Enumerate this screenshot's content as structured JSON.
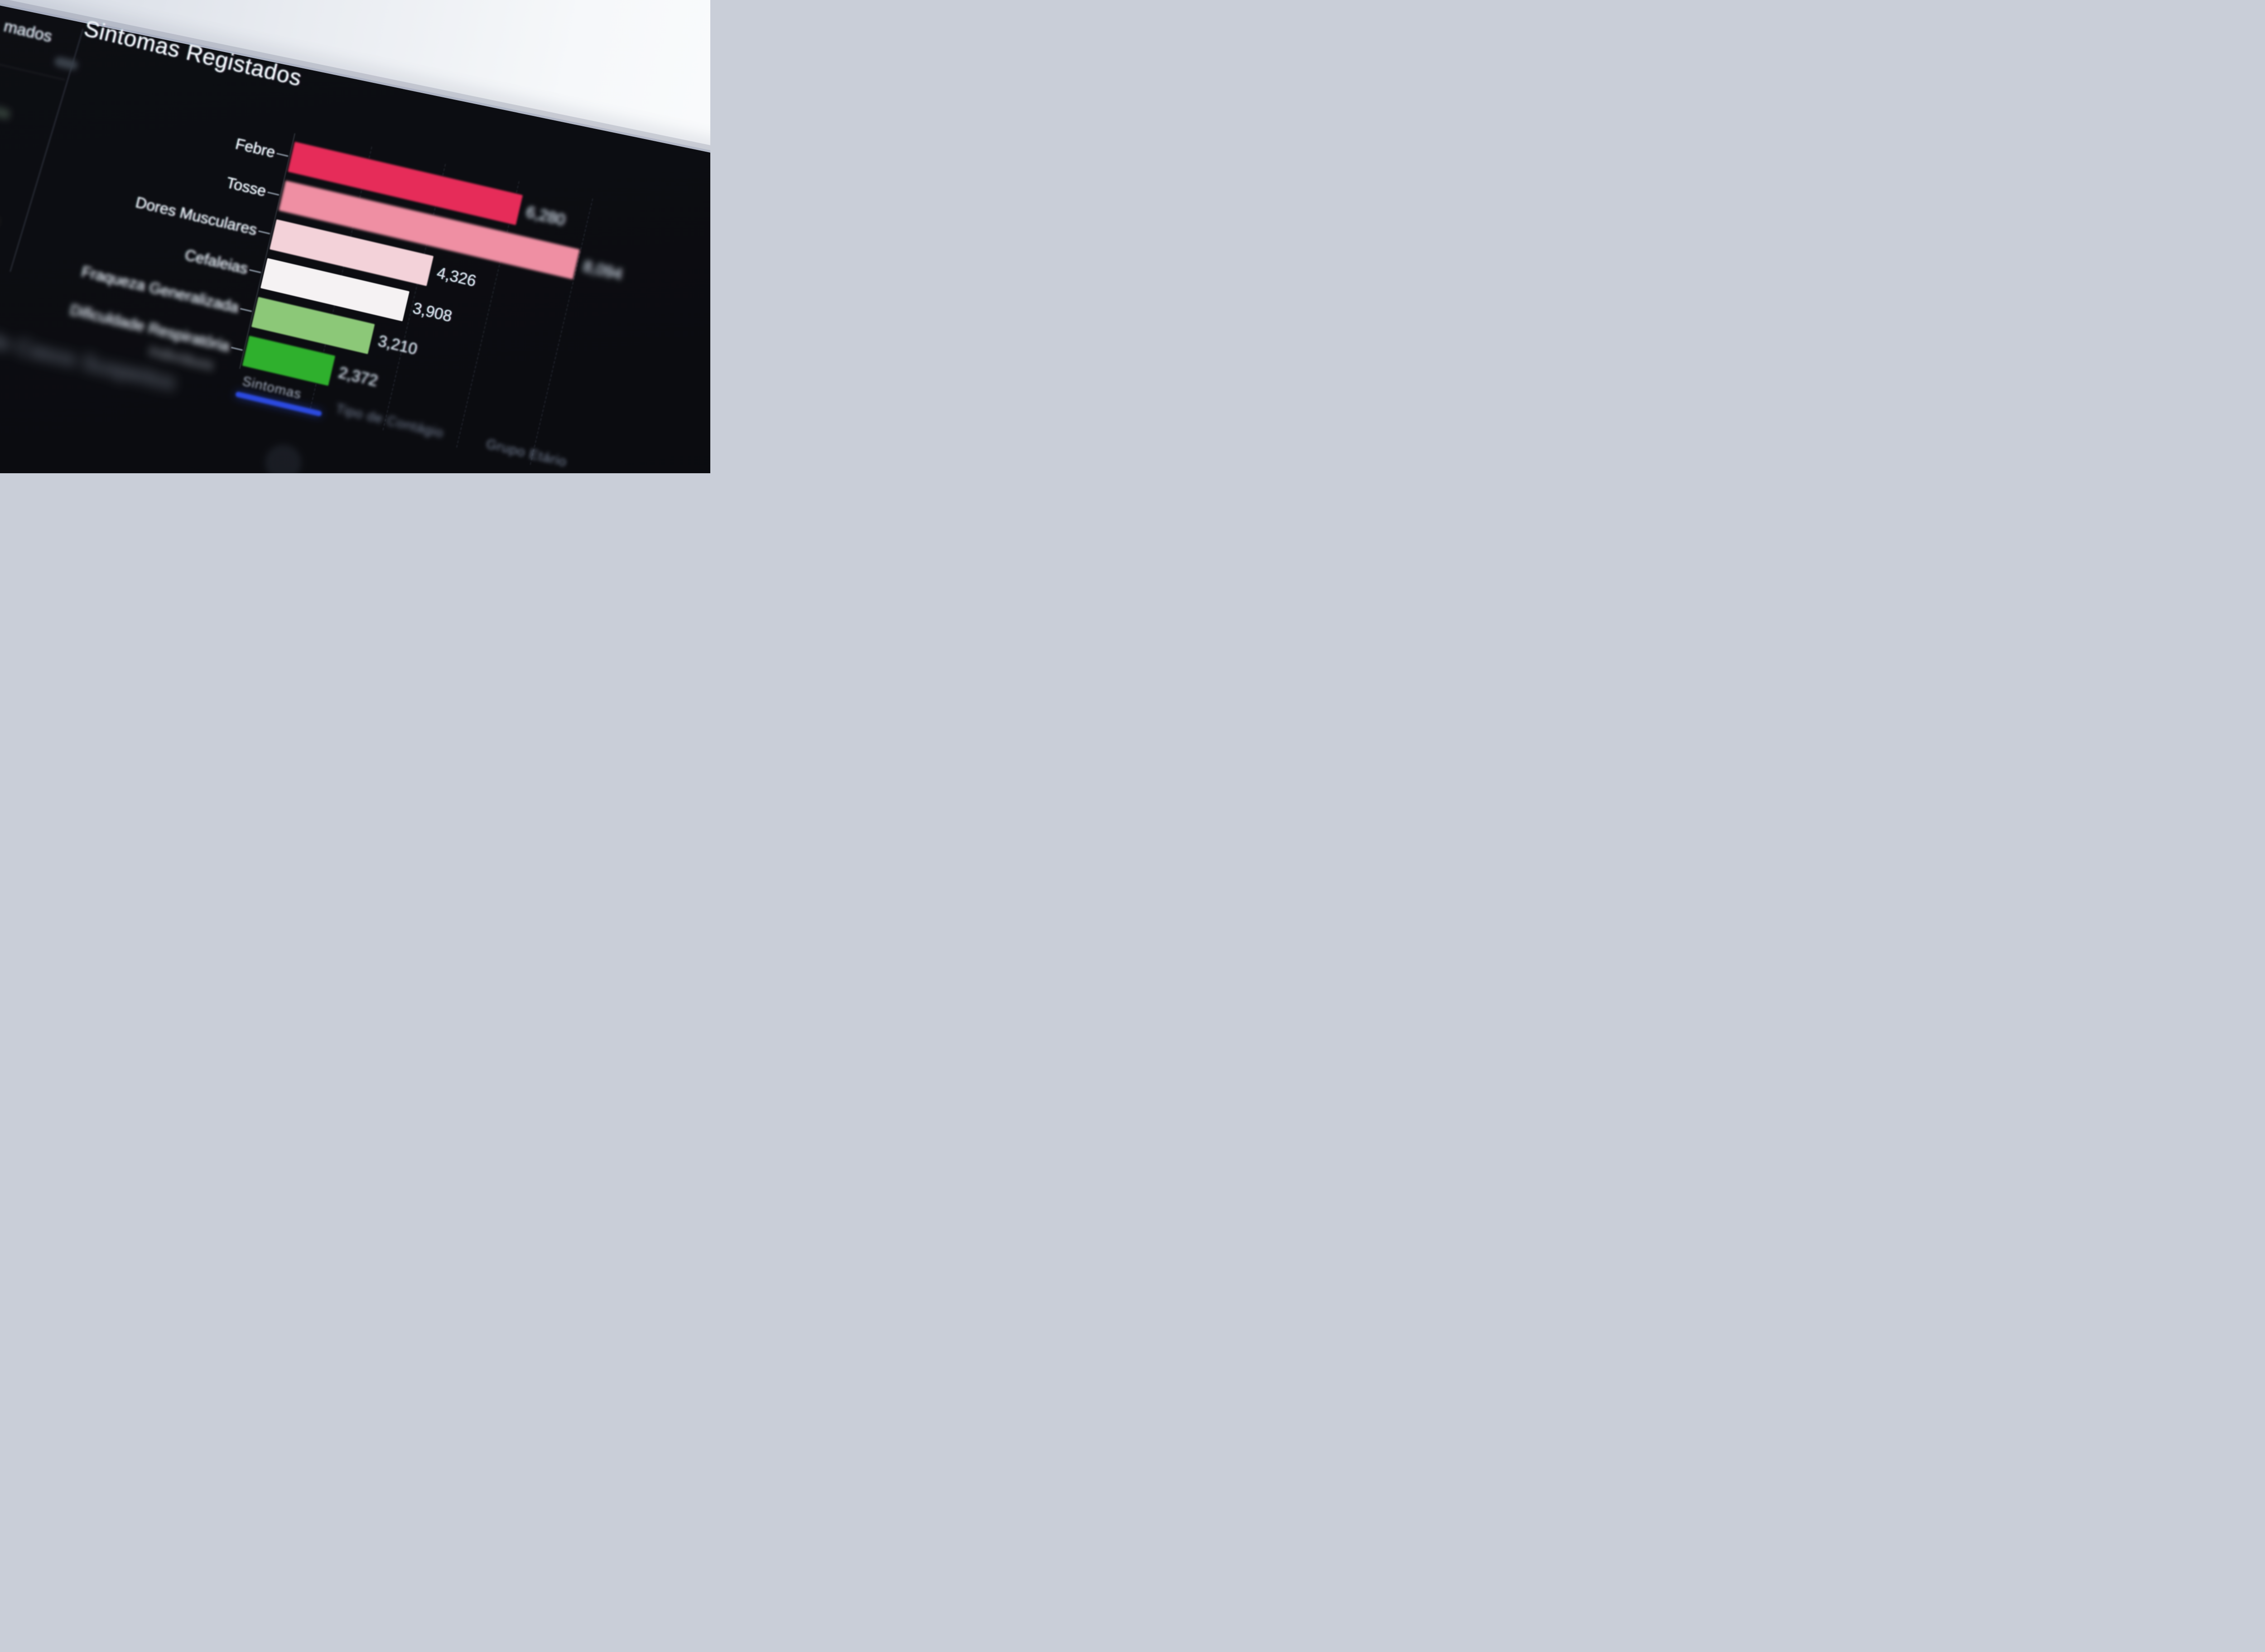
{
  "chart_data": {
    "type": "bar",
    "orientation": "horizontal",
    "title": "Sintomas Registados",
    "categories": [
      "Febre",
      "Tosse",
      "Dores Musculares",
      "Cefaleias",
      "Fraqueza Generalizada",
      "Dificuldade Respiratória"
    ],
    "values": [
      6280,
      8094,
      4326,
      3908,
      3210,
      2372
    ],
    "value_labels": [
      "6,280",
      "8,094",
      "4,326",
      "3,908",
      "3,210",
      "2,372"
    ],
    "bar_colors": [
      "#e62c59",
      "#ef8fa3",
      "#f3d2d9",
      "#f5f2f3",
      "#8cc878",
      "#2fb02d"
    ],
    "xlim": [
      0,
      8500
    ],
    "grid": "faint-dashed-vertical",
    "legend": "none",
    "axis_caption_blurred": "Indivíduos"
  },
  "tabs": {
    "accent": "#2b4ae0",
    "items": [
      {
        "label": "Sintomas",
        "active": true
      },
      {
        "label": "Tipo de Contágio",
        "active": false
      },
      {
        "label": "Grupo Etário",
        "active": false
      }
    ]
  },
  "sidebar": {
    "item_fragment_top": "mados",
    "blurred_fragment_mid": "o Gaia",
    "blurred_fragment_small": "op",
    "blurred_heading_bottom": "ão de Casos Suspeitos"
  },
  "colors": {
    "screen_bg": "#0b0c10",
    "wall": "#edf0f4",
    "title_text": "#f2f5f9",
    "value_text": "#d2dbe4",
    "tab_text": "#8b97a9"
  }
}
